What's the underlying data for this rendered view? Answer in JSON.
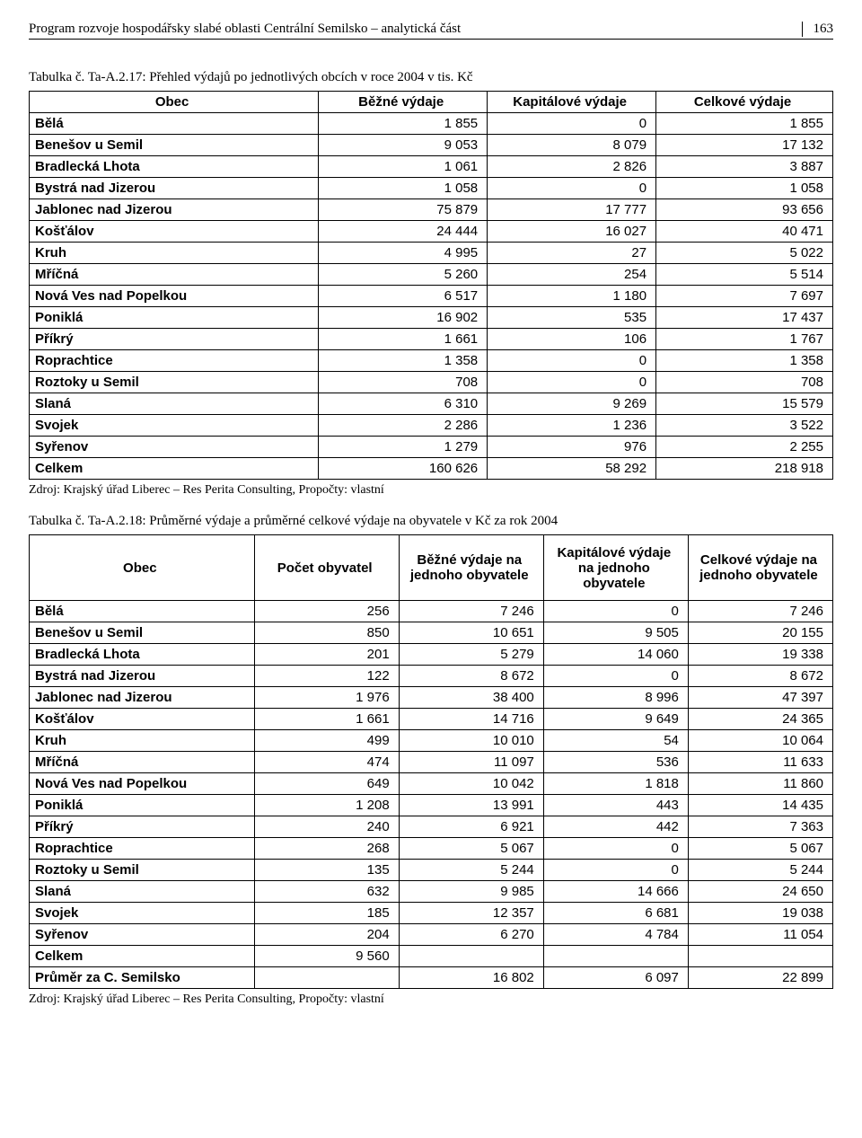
{
  "header": {
    "title": "Program rozvoje hospodářsky slabé oblasti Centrální Semilsko – analytická část",
    "page_number": "163"
  },
  "table1": {
    "caption": "Tabulka č. Ta-A.2.17: Přehled výdajů po jednotlivých obcích v roce 2004 v tis. Kč",
    "columns": [
      "Obec",
      "Běžné výdaje",
      "Kapitálové výdaje",
      "Celkové výdaje"
    ],
    "rows": [
      [
        "Bělá",
        "1 855",
        "0",
        "1 855"
      ],
      [
        "Benešov u Semil",
        "9 053",
        "8 079",
        "17 132"
      ],
      [
        "Bradlecká Lhota",
        "1 061",
        "2 826",
        "3 887"
      ],
      [
        "Bystrá nad Jizerou",
        "1 058",
        "0",
        "1 058"
      ],
      [
        "Jablonec nad Jizerou",
        "75 879",
        "17 777",
        "93 656"
      ],
      [
        "Košťálov",
        "24 444",
        "16 027",
        "40 471"
      ],
      [
        "Kruh",
        "4 995",
        "27",
        "5 022"
      ],
      [
        "Mříčná",
        "5 260",
        "254",
        "5 514"
      ],
      [
        "Nová Ves nad Popelkou",
        "6 517",
        "1 180",
        "7 697"
      ],
      [
        "Poniklá",
        "16 902",
        "535",
        "17 437"
      ],
      [
        "Příkrý",
        "1 661",
        "106",
        "1 767"
      ],
      [
        "Roprachtice",
        "1 358",
        "0",
        "1 358"
      ],
      [
        "Roztoky u Semil",
        "708",
        "0",
        "708"
      ],
      [
        "Slaná",
        "6 310",
        "9 269",
        "15 579"
      ],
      [
        "Svojek",
        "2 286",
        "1 236",
        "3 522"
      ],
      [
        "Syřenov",
        "1 279",
        "976",
        "2 255"
      ],
      [
        "Celkem",
        "160 626",
        "58 292",
        "218 918"
      ]
    ],
    "source": "Zdroj: Krajský úřad Liberec – Res Perita Consulting, Propočty: vlastní"
  },
  "table2": {
    "caption": "Tabulka č. Ta-A.2.18: Průměrné výdaje a průměrné celkové výdaje na obyvatele v Kč za rok 2004",
    "columns": [
      "Obec",
      "Počet obyvatel",
      "Běžné výdaje na jednoho obyvatele",
      "Kapitálové výdaje na jednoho obyvatele",
      "Celkové výdaje na jednoho obyvatele"
    ],
    "rows": [
      [
        "Bělá",
        "256",
        "7 246",
        "0",
        "7 246"
      ],
      [
        "Benešov u Semil",
        "850",
        "10 651",
        "9 505",
        "20 155"
      ],
      [
        "Bradlecká Lhota",
        "201",
        "5 279",
        "14 060",
        "19 338"
      ],
      [
        "Bystrá nad Jizerou",
        "122",
        "8 672",
        "0",
        "8 672"
      ],
      [
        "Jablonec nad Jizerou",
        "1 976",
        "38 400",
        "8 996",
        "47 397"
      ],
      [
        "Košťálov",
        "1 661",
        "14 716",
        "9 649",
        "24 365"
      ],
      [
        "Kruh",
        "499",
        "10 010",
        "54",
        "10 064"
      ],
      [
        "Mříčná",
        "474",
        "11 097",
        "536",
        "11 633"
      ],
      [
        "Nová Ves nad Popelkou",
        "649",
        "10 042",
        "1 818",
        "11 860"
      ],
      [
        "Poniklá",
        "1 208",
        "13 991",
        "443",
        "14 435"
      ],
      [
        "Příkrý",
        "240",
        "6 921",
        "442",
        "7 363"
      ],
      [
        "Roprachtice",
        "268",
        "5 067",
        "0",
        "5 067"
      ],
      [
        "Roztoky u Semil",
        "135",
        "5 244",
        "0",
        "5 244"
      ],
      [
        "Slaná",
        "632",
        "9 985",
        "14 666",
        "24 650"
      ],
      [
        "Svojek",
        "185",
        "12 357",
        "6 681",
        "19 038"
      ],
      [
        "Syřenov",
        "204",
        "6 270",
        "4 784",
        "11 054"
      ],
      [
        "Celkem",
        "9 560",
        "",
        "",
        ""
      ],
      [
        "Průměr za C. Semilsko",
        "",
        "16 802",
        "6 097",
        "22 899"
      ]
    ],
    "source": "Zdroj: Krajský úřad Liberec – Res Perita Consulting, Propočty: vlastní"
  },
  "layout": {
    "table1_col_widths": [
      "36%",
      "21%",
      "21%",
      "22%"
    ],
    "table2_col_widths": [
      "28%",
      "18%",
      "18%",
      "18%",
      "18%"
    ]
  }
}
